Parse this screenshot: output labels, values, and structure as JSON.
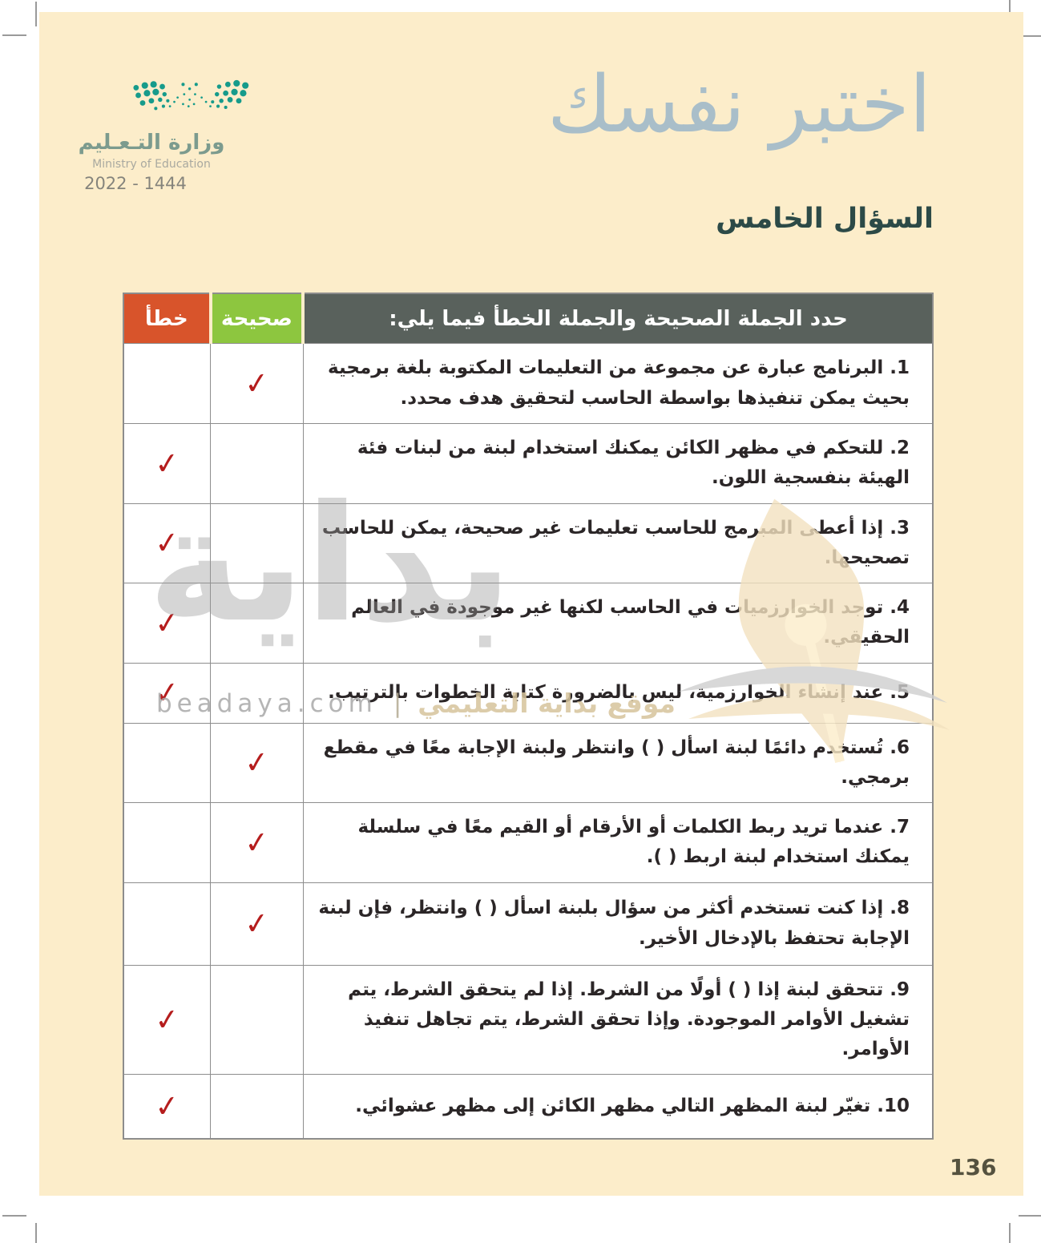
{
  "page": {
    "number": "136"
  },
  "logo": {
    "arabic_name": "وزارة التـعـليم",
    "english_name": "Ministry of Education",
    "years": "2022 - 1444"
  },
  "header": {
    "title": "اختبر نفسك",
    "subtitle": "السؤال الخامس"
  },
  "table": {
    "instruction": "حدد الجملة الصحيحة والجملة الخطأ فيما يلي:",
    "col_correct": "صحيحة",
    "col_wrong": "خطأ",
    "check_glyph": "✓",
    "rows": [
      {
        "text": "1. البرنامج عبارة عن مجموعة من التعليمات المكتوبة بلغة برمجية بحيث يمكن تنفيذها بواسطة الحاسب لتحقيق هدف محدد.",
        "answer": "correct"
      },
      {
        "text": "2. للتحكم في مظهر الكائن يمكنك استخدام لبنة من لبنات فئة الهيئة بنفسجية اللون.",
        "answer": "wrong"
      },
      {
        "text": "3. إذا أعطى المبرمج للحاسب تعليمات غير صحيحة، يمكن للحاسب تصحيحها.",
        "answer": "wrong"
      },
      {
        "text": "4. توجد الخوارزميات في الحاسب لكنها غير موجودة في العالم الحقيقي.",
        "answer": "wrong"
      },
      {
        "text": "5. عند إنشاء الخوارزمية، ليس بالضرورة كتابة الخطوات بالترتيب.",
        "answer": "wrong"
      },
      {
        "text": "6. تُستخدم دائمًا لبنة اسأل ( ) وانتظر ولبنة الإجابة معًا في مقطع برمجي.",
        "answer": "correct"
      },
      {
        "text": "7. عندما تريد ربط الكلمات أو الأرقام أو القيم معًا في سلسلة يمكنك استخدام لبنة اربط ( ).",
        "answer": "correct"
      },
      {
        "text": "8. إذا كنت تستخدم أكثر من سؤال بلبنة اسأل ( ) وانتظر، فإن لبنة الإجابة تحتفظ بالإدخال الأخير.",
        "answer": "correct"
      },
      {
        "text": "9. تتحقق لبنة إذا ( ) أولًا من الشرط. إذا لم يتحقق الشرط، يتم تشغيل الأوامر الموجودة. وإذا تحقق الشرط، يتم تجاهل تنفيذ الأوامر.",
        "answer": "wrong"
      },
      {
        "text": "10. تغيّر لبنة المظهر التالي مظهر الكائن إلى مظهر عشوائي.",
        "answer": "wrong"
      }
    ]
  },
  "watermark": {
    "big_text": "بداية",
    "site": "beadaya.com",
    "separator": "|",
    "site_ar": "موقع بداية التعليمي"
  },
  "colors": {
    "page_background": "#fcedca",
    "header_dark": "#59615c",
    "correct_green": "#8dc63f",
    "wrong_orange": "#d8542b",
    "check_red": "#b51d1d",
    "title_blue": "#a9bec9",
    "subtitle_teal": "#2c4a47",
    "logo_teal": "#169b8b"
  }
}
